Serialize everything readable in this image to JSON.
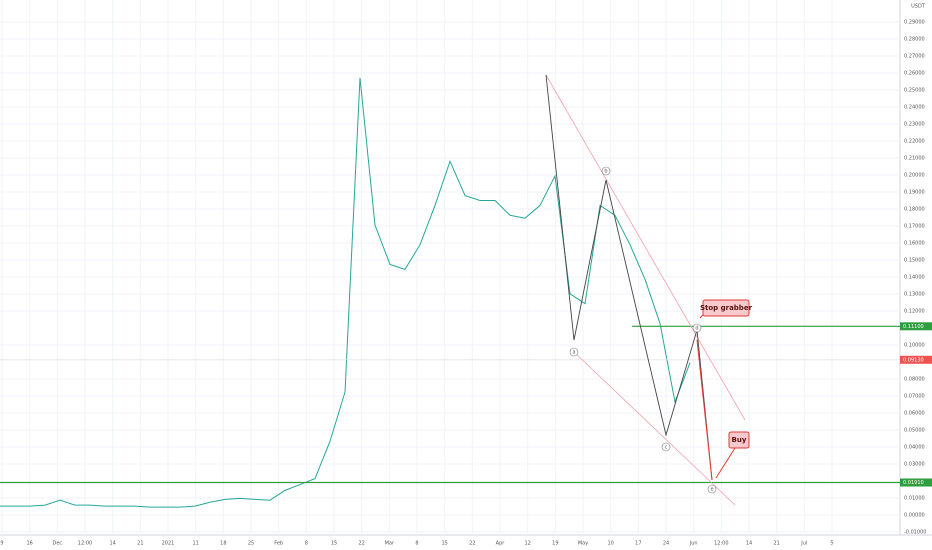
{
  "chart_data": {
    "type": "line",
    "currency": "USDT",
    "ylim": [
      -0.01,
      0.3
    ],
    "yticks": [
      {
        "value": 0.29,
        "label": "0.29000"
      },
      {
        "value": 0.28,
        "label": "0.28000"
      },
      {
        "value": 0.27,
        "label": "0.27000"
      },
      {
        "value": 0.26,
        "label": "0.26000"
      },
      {
        "value": 0.25,
        "label": "0.25000"
      },
      {
        "value": 0.24,
        "label": "0.24000"
      },
      {
        "value": 0.23,
        "label": "0.23000"
      },
      {
        "value": 0.22,
        "label": "0.22000"
      },
      {
        "value": 0.21,
        "label": "0.21000"
      },
      {
        "value": 0.2,
        "label": "0.20000"
      },
      {
        "value": 0.19,
        "label": "0.19000"
      },
      {
        "value": 0.18,
        "label": "0.18000"
      },
      {
        "value": 0.17,
        "label": "0.17000"
      },
      {
        "value": 0.16,
        "label": "0.16000"
      },
      {
        "value": 0.15,
        "label": "0.15000"
      },
      {
        "value": 0.14,
        "label": "0.14000"
      },
      {
        "value": 0.13,
        "label": "0.13000"
      },
      {
        "value": 0.12,
        "label": "0.12000"
      },
      {
        "value": 0.1,
        "label": "0.10000"
      },
      {
        "value": 0.08,
        "label": "0.08000"
      },
      {
        "value": 0.07,
        "label": "0.07000"
      },
      {
        "value": 0.06,
        "label": "0.06000"
      },
      {
        "value": 0.05,
        "label": "0.05000"
      },
      {
        "value": 0.04,
        "label": "0.04000"
      },
      {
        "value": 0.03,
        "label": "0.03000"
      },
      {
        "value": 0.01,
        "label": "0.01000"
      },
      {
        "value": 0.0,
        "label": "0.00000"
      },
      {
        "value": -0.01,
        "label": "-0.01000"
      }
    ],
    "x_labels": [
      "9",
      "16",
      "Dec",
      "12:00",
      "14",
      "21",
      "2021",
      "11",
      "18",
      "25",
      "Feb",
      "8",
      "15",
      "22",
      "Mar",
      "8",
      "15",
      "22",
      "Apr",
      "12",
      "19",
      "May",
      "10",
      "17",
      "24",
      "Jun",
      "12:00",
      "14",
      "21",
      "Jul",
      "5"
    ],
    "series": [
      {
        "color": "#26a69a",
        "values": [
          0.0052,
          0.0052,
          0.0052,
          0.0058,
          0.0087,
          0.0058,
          0.0058,
          0.0052,
          0.0052,
          0.0052,
          0.0046,
          0.0046,
          0.0046,
          0.0052,
          0.0075,
          0.0092,
          0.0098,
          0.0092,
          0.0087,
          0.0145,
          0.0179,
          0.0214,
          0.0434,
          0.0723,
          0.2572,
          0.1705,
          0.1474,
          0.1445,
          0.159,
          0.1821,
          0.2081,
          0.1879,
          0.185,
          0.185,
          0.1763,
          0.1746,
          0.1821,
          0.1994,
          0.1301,
          0.1243,
          0.1821,
          0.1763,
          0.159,
          0.1387,
          0.1127,
          0.0665,
          0.0896
        ]
      }
    ],
    "levels": [
      {
        "value": 0.111,
        "label": "0.11100",
        "color": "#2e9e3e"
      },
      {
        "value": 0.0191,
        "label": "0.01910",
        "color": "#2e9e3e"
      },
      {
        "value": 0.0913,
        "label": "0.09130",
        "color": "#ef5350"
      }
    ],
    "waves": [
      "a",
      "b",
      "c",
      "d",
      "e"
    ],
    "callouts": [
      "Stop grabber",
      "Buy"
    ]
  }
}
